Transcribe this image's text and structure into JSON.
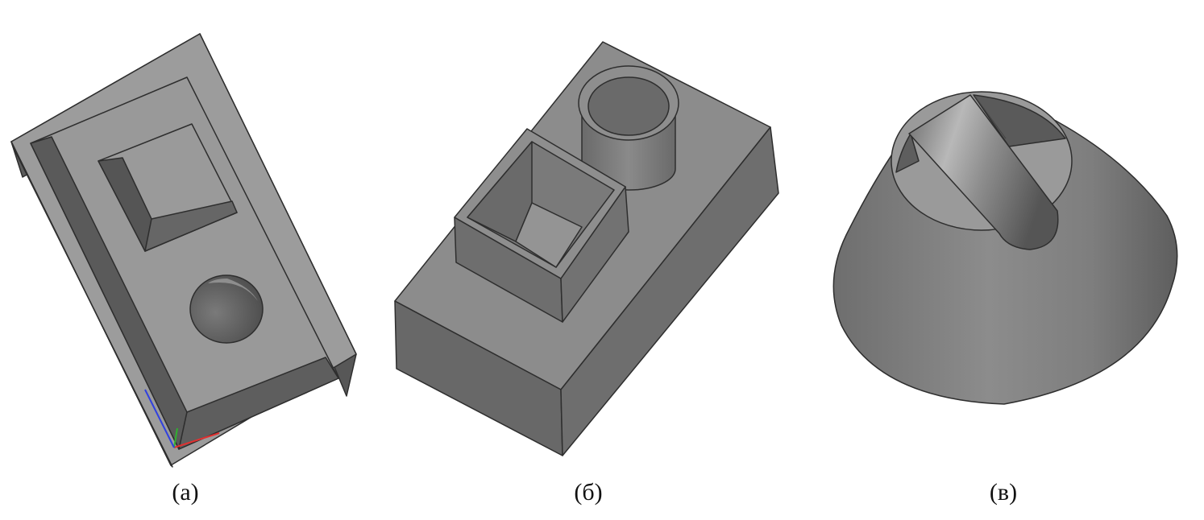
{
  "captions": {
    "a": "(а)",
    "b": "(б)",
    "c": "(в)"
  },
  "colors": {
    "face_light": "#9c9c9c",
    "face_mid": "#8a8a8a",
    "face_dark": "#656565",
    "face_darker": "#575757",
    "edge": "#2e2e2e",
    "axis_x": "#e03030",
    "axis_y": "#30b030",
    "axis_z": "#3040e0"
  }
}
